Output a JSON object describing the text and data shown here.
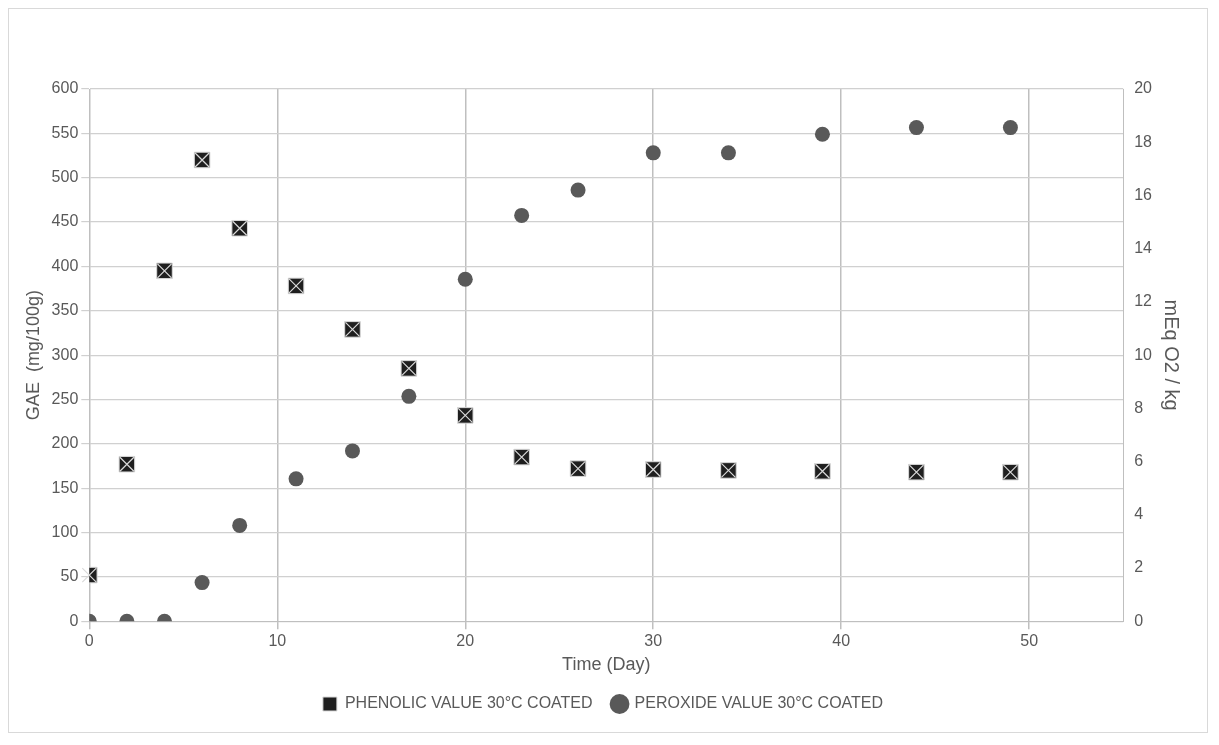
{
  "chart_data": {
    "type": "scatter",
    "xlabel": "Time (Day)",
    "ylabel": "GAE  (mg/100g)",
    "y2label": "mEq O2 / kg",
    "xlim": [
      0,
      55
    ],
    "xticks": [
      0,
      10,
      20,
      30,
      40,
      50
    ],
    "ylim": [
      0,
      600
    ],
    "yticks": [
      0,
      50,
      100,
      150,
      200,
      250,
      300,
      350,
      400,
      450,
      500,
      550,
      600
    ],
    "y2lim": [
      0,
      20
    ],
    "y2ticks": [
      0,
      2,
      4,
      6,
      8,
      10,
      12,
      14,
      16,
      18,
      20
    ],
    "grid": true,
    "legend": "bottom",
    "series": [
      {
        "name": "PHENOLIC VALUE 30°C COATED",
        "color": "#1f1f1f",
        "marker": "square",
        "x": [
          0,
          2,
          4,
          6,
          8,
          11,
          14,
          17,
          20,
          23,
          26,
          30,
          34,
          39,
          44,
          49
        ],
        "values": [
          52,
          177,
          395,
          520,
          443,
          378,
          329,
          285,
          232,
          185,
          172,
          171,
          170,
          169,
          168,
          168
        ]
      },
      {
        "name": "PEROXIDE VALUE 30°C COATED",
        "color": "#595959",
        "marker": "circle",
        "axis": "y2",
        "x": [
          0,
          2,
          4,
          6,
          8,
          11,
          14,
          17,
          20,
          23,
          26,
          30,
          34,
          39,
          44,
          49
        ],
        "values": [
          0,
          0,
          0,
          1.45,
          3.6,
          5.35,
          6.4,
          8.45,
          12.85,
          15.25,
          16.2,
          17.6,
          17.6,
          18.3,
          18.55,
          18.55
        ]
      }
    ]
  }
}
